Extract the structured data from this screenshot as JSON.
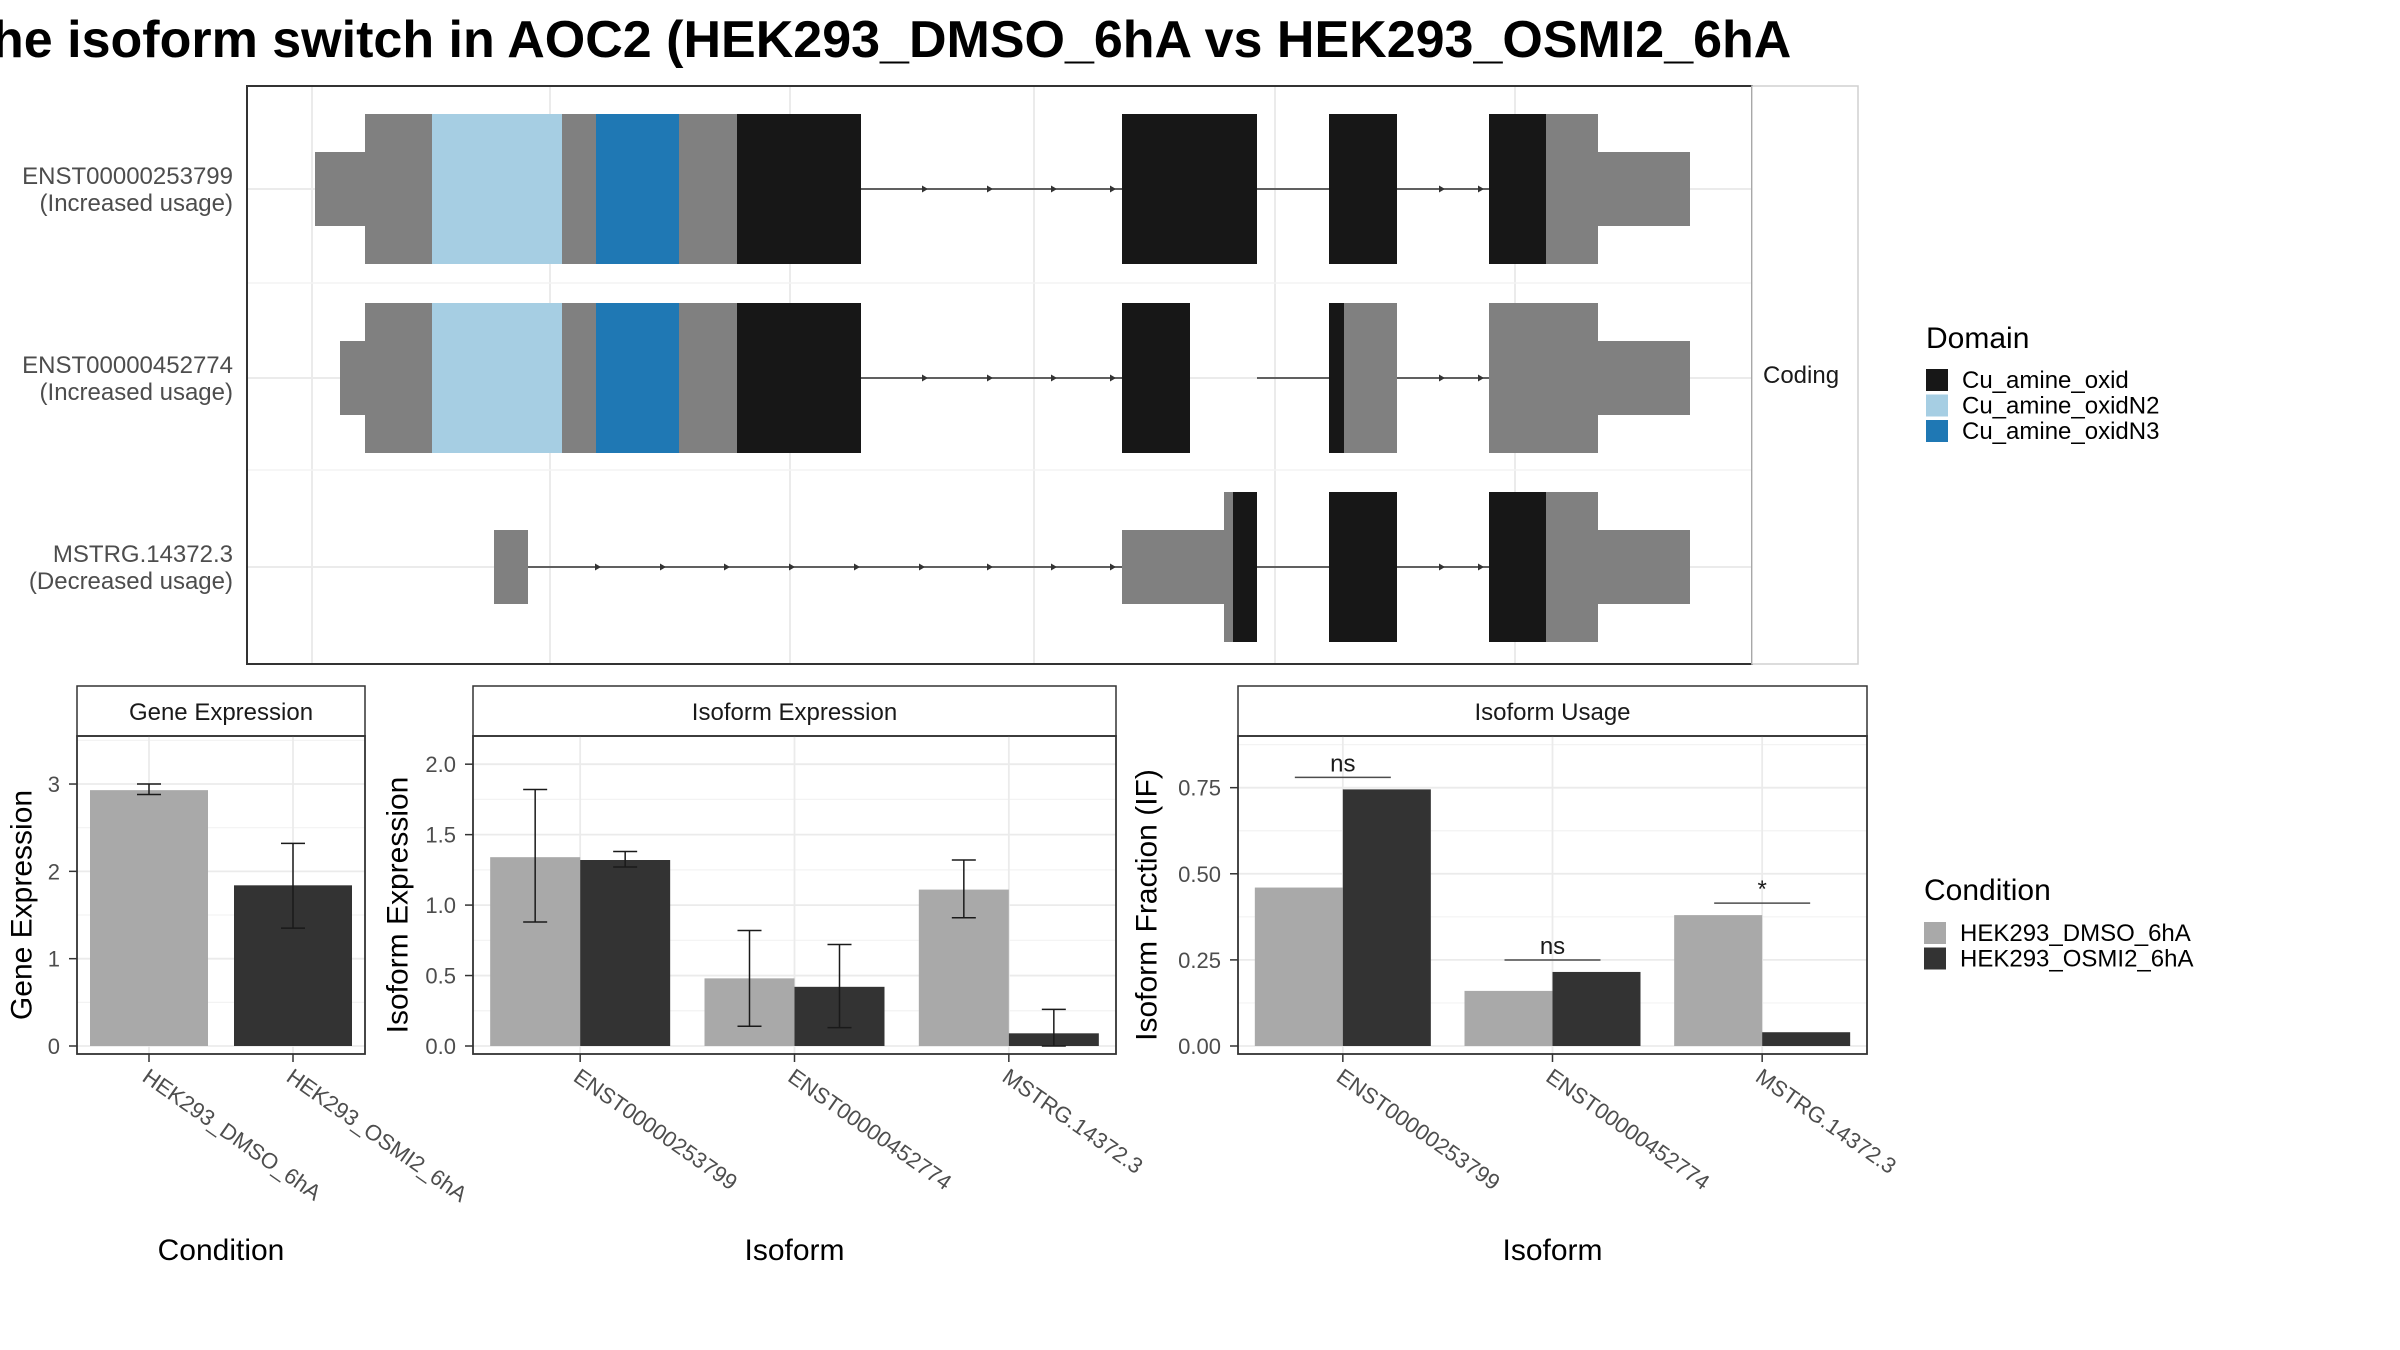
{
  "title": "he isoform switch in AOC2 (HEK293_DMSO_6hA vs HEK293_OSMI2_6hA",
  "colors": {
    "cu_amine_oxid": "#171717",
    "cu_amine_oxidN2": "#a6cee3",
    "cu_amine_oxidN3": "#1f78b4",
    "non_domain": "#808080",
    "dmso": "#a9a9a9",
    "osmi2": "#333333"
  },
  "chart_data": [
    {
      "type": "gene-structure",
      "name": "transcript-structure",
      "facet_label": "Coding",
      "transcripts": [
        {
          "id": "ENST00000253799",
          "status": "(Increased usage)"
        },
        {
          "id": "ENST00000452774",
          "status": "(Increased usage)"
        },
        {
          "id": "MSTRG.14372.3",
          "status": "(Decreased usage)"
        }
      ],
      "legend": {
        "title": "Domain",
        "entries": [
          "Cu_amine_oxid",
          "Cu_amine_oxidN2",
          "Cu_amine_oxidN3"
        ]
      }
    },
    {
      "type": "bar",
      "name": "gene-expression",
      "strip": "Gene Expression",
      "xlabel": "Condition",
      "ylabel": "Gene Expression",
      "ylim": [
        0,
        3.55
      ],
      "yticks": [
        0,
        1,
        2,
        3
      ],
      "categories": [
        "HEK293_DMSO_6hA",
        "HEK293_OSMI2_6hA"
      ],
      "values": [
        2.93,
        1.84
      ],
      "error_low": [
        2.88,
        1.35
      ],
      "error_high": [
        3.0,
        2.32
      ]
    },
    {
      "type": "bar",
      "name": "isoform-expression",
      "strip": "Isoform Expression",
      "xlabel": "Isoform",
      "ylabel": "Isoform Expression",
      "ylim": [
        0,
        2.2
      ],
      "yticks": [
        0.0,
        0.5,
        1.0,
        1.5,
        2.0
      ],
      "categories": [
        "ENST00000253799",
        "ENST00000452774",
        "MSTRG.14372.3"
      ],
      "series": [
        {
          "condition": "HEK293_DMSO_6hA",
          "values": [
            1.34,
            0.48,
            1.11
          ],
          "error_low": [
            0.88,
            0.14,
            0.91
          ],
          "error_high": [
            1.82,
            0.82,
            1.32
          ]
        },
        {
          "condition": "HEK293_OSMI2_6hA",
          "values": [
            1.32,
            0.42,
            0.09
          ],
          "error_low": [
            1.27,
            0.13,
            0.0
          ],
          "error_high": [
            1.38,
            0.72,
            0.26
          ]
        }
      ]
    },
    {
      "type": "bar",
      "name": "isoform-usage",
      "strip": "Isoform Usage",
      "xlabel": "Isoform",
      "ylabel": "Isoform Fraction (IF)",
      "ylim": [
        0,
        0.9
      ],
      "yticks": [
        0.0,
        0.25,
        0.5,
        0.75
      ],
      "categories": [
        "ENST00000253799",
        "ENST00000452774",
        "MSTRG.14372.3"
      ],
      "series": [
        {
          "condition": "HEK293_DMSO_6hA",
          "values": [
            0.46,
            0.16,
            0.38
          ]
        },
        {
          "condition": "HEK293_OSMI2_6hA",
          "values": [
            0.745,
            0.215,
            0.04
          ]
        }
      ],
      "significance": [
        "ns",
        "ns",
        "*"
      ]
    }
  ],
  "condition_legend": {
    "title": "Condition",
    "entries": [
      "HEK293_DMSO_6hA",
      "HEK293_OSMI2_6hA"
    ]
  }
}
